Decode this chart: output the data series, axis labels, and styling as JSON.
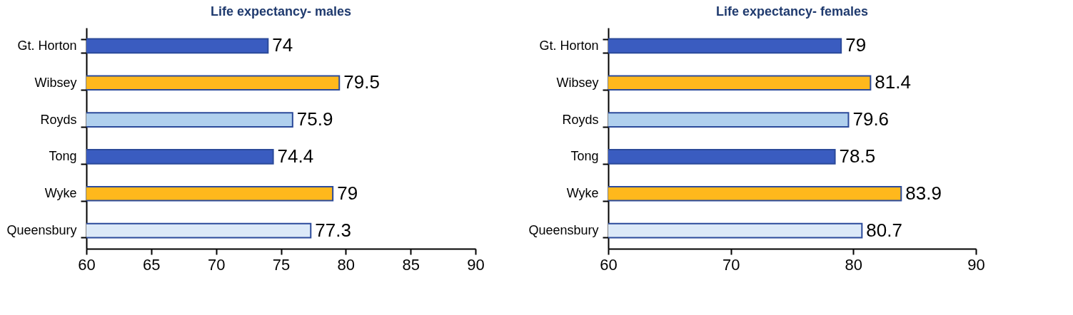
{
  "chart_data": [
    {
      "type": "bar",
      "orientation": "horizontal",
      "title": "Life expectancy- males",
      "categories": [
        "Gt. Horton",
        "Wibsey",
        "Royds",
        "Tong",
        "Wyke",
        "Queensbury"
      ],
      "values": [
        74,
        79.5,
        75.9,
        74.4,
        79,
        77.3
      ],
      "colors": [
        "#3a5cc0",
        "#ffb81c",
        "#b0d0ee",
        "#3a5cc0",
        "#ffb81c",
        "#dce9f8"
      ],
      "xlim": [
        60,
        90
      ],
      "xticks": [
        60,
        65,
        70,
        75,
        80,
        85,
        90
      ],
      "data_labels": true
    },
    {
      "type": "bar",
      "orientation": "horizontal",
      "title": "Life expectancy- females",
      "categories": [
        "Gt. Horton",
        "Wibsey",
        "Royds",
        "Tong",
        "Wyke",
        "Queensbury"
      ],
      "values": [
        79,
        81.4,
        79.6,
        78.5,
        83.9,
        80.7
      ],
      "colors": [
        "#3a5cc0",
        "#ffb81c",
        "#b0d0ee",
        "#3a5cc0",
        "#ffb81c",
        "#dce9f8"
      ],
      "xlim": [
        60,
        90
      ],
      "xticks": [
        60,
        70,
        80,
        90
      ],
      "data_labels": true
    }
  ]
}
